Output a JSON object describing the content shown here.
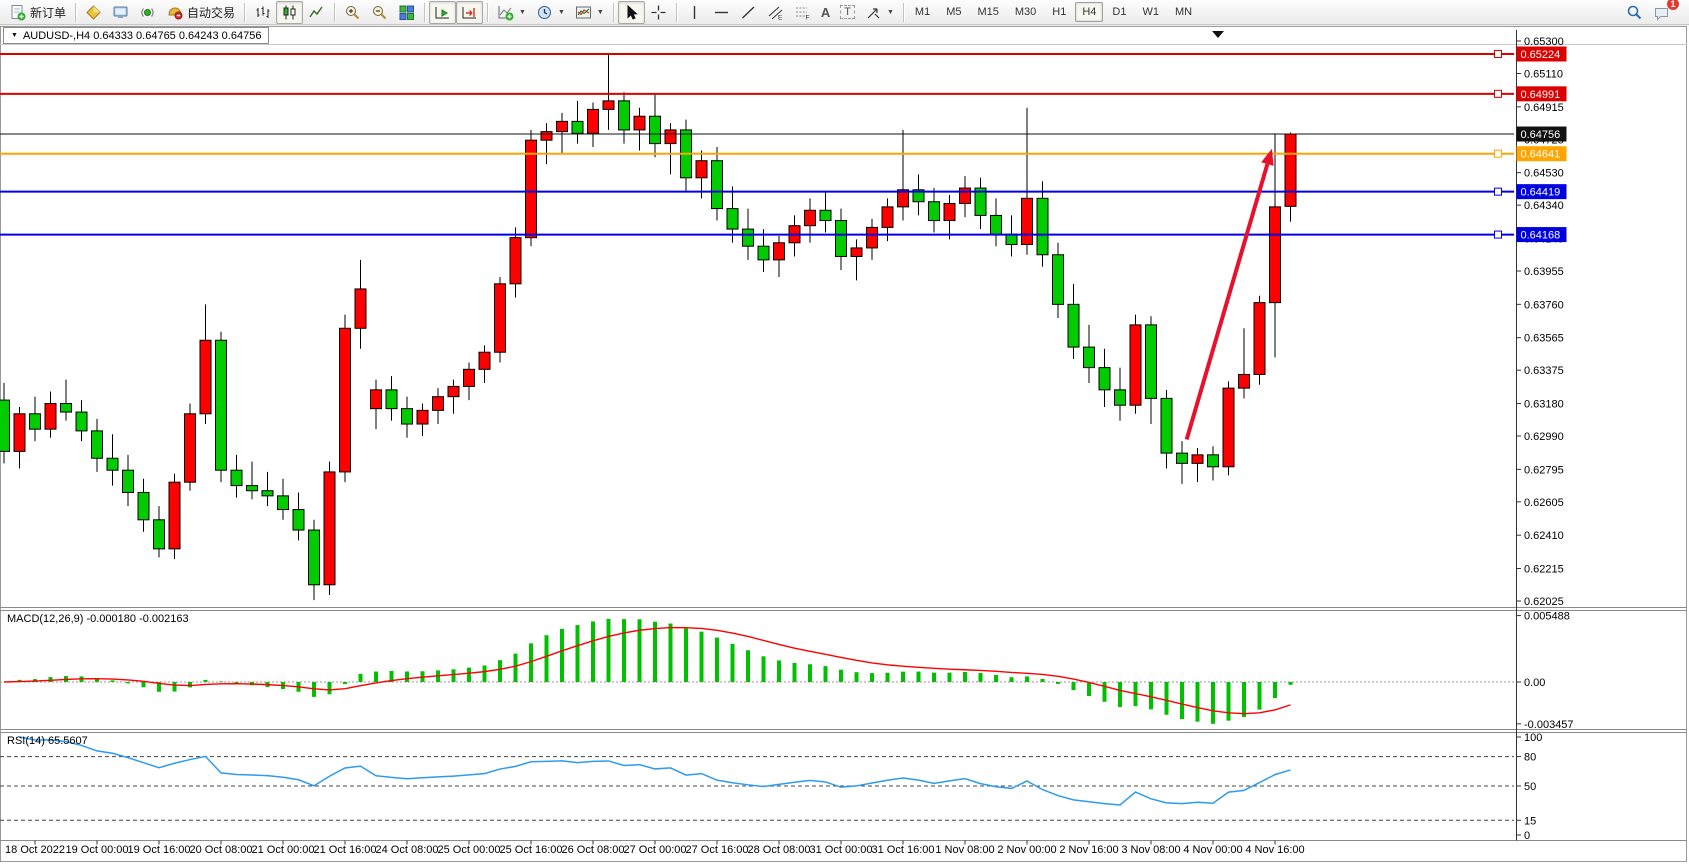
{
  "toolbar": {
    "new_order_label": "新订单",
    "autotrading_label": "自动交易",
    "text_tool_letter": "A",
    "label_tool_letter": "T",
    "timeframes": [
      "M1",
      "M5",
      "M15",
      "M30",
      "H1",
      "H4",
      "D1",
      "W1",
      "MN"
    ],
    "active_timeframe": "H4",
    "notification_badge": "1"
  },
  "chart": {
    "title": "AUDUSD-,H4  0.64333 0.64765 0.64243 0.64756",
    "macd_label": "MACD(12,26,9) -0.000180 -0.002163",
    "rsi_label": "RSI(14) 65.5607"
  },
  "chart_data": {
    "type": "candlestick",
    "symbol": "AUDUSD-",
    "timeframe": "H4",
    "current_ohlc": {
      "open": "0.64333",
      "high": "0.64765",
      "low": "0.64243",
      "close": "0.64756"
    },
    "ylim": [
      0.62025,
      0.653
    ],
    "price_ticks": [
      "0.65300",
      "0.65110",
      "0.64915",
      "0.64725",
      "0.64530",
      "0.64340",
      "0.64145",
      "0.63955",
      "0.63760",
      "0.63565",
      "0.63375",
      "0.63180",
      "0.62990",
      "0.62795",
      "0.62605",
      "0.62410",
      "0.62215",
      "0.62025"
    ],
    "x_labels": [
      "18 Oct 2022",
      "19 Oct 00:00",
      "19 Oct 16:00",
      "20 Oct 08:00",
      "21 Oct 00:00",
      "21 Oct 16:00",
      "24 Oct 08:00",
      "25 Oct 00:00",
      "25 Oct 16:00",
      "26 Oct 08:00",
      "27 Oct 00:00",
      "27 Oct 16:00",
      "28 Oct 08:00",
      "31 Oct 00:00",
      "31 Oct 16:00",
      "1 Nov 08:00",
      "2 Nov 00:00",
      "2 Nov 16:00",
      "3 Nov 08:00",
      "4 Nov 00:00",
      "4 Nov 16:00"
    ],
    "x_label_start_index": 2,
    "x_label_step": 4,
    "candles": [
      [
        0.632,
        0.633,
        0.6283,
        0.629
      ],
      [
        0.629,
        0.6316,
        0.628,
        0.6312
      ],
      [
        0.6312,
        0.6322,
        0.6296,
        0.6303
      ],
      [
        0.6303,
        0.6325,
        0.6298,
        0.6318
      ],
      [
        0.6318,
        0.6332,
        0.6308,
        0.6313
      ],
      [
        0.6313,
        0.632,
        0.6296,
        0.6302
      ],
      [
        0.6302,
        0.6309,
        0.6278,
        0.6286
      ],
      [
        0.6286,
        0.63,
        0.627,
        0.6279
      ],
      [
        0.6279,
        0.6288,
        0.6258,
        0.6266
      ],
      [
        0.6266,
        0.6274,
        0.6243,
        0.625
      ],
      [
        0.625,
        0.6258,
        0.6228,
        0.6233
      ],
      [
        0.6233,
        0.6277,
        0.6227,
        0.6272
      ],
      [
        0.6272,
        0.6318,
        0.6267,
        0.6312
      ],
      [
        0.6312,
        0.6376,
        0.6306,
        0.6355
      ],
      [
        0.6355,
        0.636,
        0.6272,
        0.6279
      ],
      [
        0.6279,
        0.6288,
        0.6263,
        0.627
      ],
      [
        0.627,
        0.6284,
        0.6262,
        0.6267
      ],
      [
        0.6267,
        0.6278,
        0.6258,
        0.6264
      ],
      [
        0.6264,
        0.6274,
        0.625,
        0.6256
      ],
      [
        0.6256,
        0.6266,
        0.6238,
        0.6244
      ],
      [
        0.6244,
        0.625,
        0.6203,
        0.6212
      ],
      [
        0.6212,
        0.6284,
        0.6206,
        0.6278
      ],
      [
        0.6278,
        0.637,
        0.6272,
        0.6362
      ],
      [
        0.6362,
        0.6402,
        0.635,
        0.6385
      ],
      [
        0.6315,
        0.6332,
        0.6303,
        0.6326
      ],
      [
        0.6326,
        0.6334,
        0.6308,
        0.6315
      ],
      [
        0.6315,
        0.6322,
        0.6298,
        0.6306
      ],
      [
        0.6306,
        0.6318,
        0.6299,
        0.6314
      ],
      [
        0.6314,
        0.6327,
        0.6306,
        0.6322
      ],
      [
        0.6322,
        0.6332,
        0.6312,
        0.6328
      ],
      [
        0.6328,
        0.6342,
        0.632,
        0.6338
      ],
      [
        0.6338,
        0.6352,
        0.633,
        0.6348
      ],
      [
        0.6348,
        0.6392,
        0.6342,
        0.6388
      ],
      [
        0.6388,
        0.6421,
        0.638,
        0.6415
      ],
      [
        0.6415,
        0.6478,
        0.641,
        0.6472
      ],
      [
        0.6472,
        0.6482,
        0.6458,
        0.6477
      ],
      [
        0.6477,
        0.6488,
        0.6464,
        0.6483
      ],
      [
        0.6483,
        0.6495,
        0.647,
        0.6476
      ],
      [
        0.6476,
        0.6494,
        0.6468,
        0.649
      ],
      [
        0.649,
        0.6522,
        0.6478,
        0.6495
      ],
      [
        0.6495,
        0.65,
        0.647,
        0.6478
      ],
      [
        0.6478,
        0.6491,
        0.6466,
        0.6486
      ],
      [
        0.6486,
        0.6499,
        0.6462,
        0.647
      ],
      [
        0.647,
        0.6482,
        0.6452,
        0.6478
      ],
      [
        0.6478,
        0.6484,
        0.6442,
        0.645
      ],
      [
        0.645,
        0.6466,
        0.6438,
        0.646
      ],
      [
        0.646,
        0.6468,
        0.6425,
        0.6432
      ],
      [
        0.6432,
        0.6445,
        0.6412,
        0.642
      ],
      [
        0.642,
        0.6432,
        0.6402,
        0.641
      ],
      [
        0.641,
        0.642,
        0.6395,
        0.6402
      ],
      [
        0.6402,
        0.6416,
        0.6392,
        0.6412
      ],
      [
        0.6412,
        0.6428,
        0.6404,
        0.6422
      ],
      [
        0.6422,
        0.6438,
        0.6412,
        0.6431
      ],
      [
        0.6431,
        0.6442,
        0.6418,
        0.6425
      ],
      [
        0.6425,
        0.6432,
        0.6396,
        0.6404
      ],
      [
        0.6404,
        0.6414,
        0.639,
        0.6409
      ],
      [
        0.6409,
        0.6426,
        0.6402,
        0.6421
      ],
      [
        0.6421,
        0.6438,
        0.6413,
        0.6433
      ],
      [
        0.6433,
        0.6478,
        0.6425,
        0.6443
      ],
      [
        0.6443,
        0.6452,
        0.6428,
        0.6436
      ],
      [
        0.6436,
        0.6444,
        0.6418,
        0.6425
      ],
      [
        0.6425,
        0.644,
        0.6414,
        0.6435
      ],
      [
        0.6435,
        0.6451,
        0.6427,
        0.6444
      ],
      [
        0.6444,
        0.645,
        0.642,
        0.6428
      ],
      [
        0.6428,
        0.6438,
        0.641,
        0.6417
      ],
      [
        0.6417,
        0.6428,
        0.6404,
        0.6411
      ],
      [
        0.6411,
        0.6491,
        0.6405,
        0.6438
      ],
      [
        0.6438,
        0.6448,
        0.6398,
        0.6405
      ],
      [
        0.6405,
        0.6412,
        0.6368,
        0.6376
      ],
      [
        0.6376,
        0.6388,
        0.6344,
        0.6351
      ],
      [
        0.6351,
        0.6364,
        0.633,
        0.6339
      ],
      [
        0.6339,
        0.635,
        0.6316,
        0.6326
      ],
      [
        0.6326,
        0.6339,
        0.6308,
        0.6317
      ],
      [
        0.6317,
        0.637,
        0.6312,
        0.6364
      ],
      [
        0.6364,
        0.6369,
        0.6306,
        0.6321
      ],
      [
        0.6321,
        0.6326,
        0.628,
        0.6289
      ],
      [
        0.6289,
        0.6296,
        0.6271,
        0.6283
      ],
      [
        0.6283,
        0.6292,
        0.6272,
        0.6288
      ],
      [
        0.6288,
        0.6293,
        0.6273,
        0.6281
      ],
      [
        0.6281,
        0.6331,
        0.6276,
        0.6327
      ],
      [
        0.6327,
        0.6362,
        0.6321,
        0.6335
      ],
      [
        0.6335,
        0.6381,
        0.6329,
        0.6377
      ],
      [
        0.6377,
        0.6476,
        0.6345,
        0.6433
      ],
      [
        0.64333,
        0.64765,
        0.64243,
        0.64756
      ]
    ],
    "hlines": [
      {
        "price": "0.65224",
        "value": 0.65224,
        "color": "#dd0000",
        "width": 2,
        "handle": true
      },
      {
        "price": "0.64991",
        "value": 0.64991,
        "color": "#dd0000",
        "width": 2,
        "handle": true
      },
      {
        "price": "0.64756",
        "value": 0.64756,
        "color": "#111111",
        "width": 1,
        "handle": false,
        "role": "current-price"
      },
      {
        "price": "0.64641",
        "value": 0.64641,
        "color": "#ffa500",
        "width": 2,
        "handle": true
      },
      {
        "price": "0.64419",
        "value": 0.64419,
        "color": "#0000e0",
        "width": 2,
        "handle": true
      },
      {
        "price": "0.64168",
        "value": 0.64168,
        "color": "#0000e0",
        "width": 2,
        "handle": true
      }
    ],
    "indicators": [
      {
        "name": "MACD",
        "params": "12,26,9",
        "main": "-0.000180",
        "signal": "-0.002163",
        "ticks": [
          "0.005488",
          "0.00",
          "-0.003457"
        ],
        "hist_color": "#00c000",
        "signal_color": "#ff0000"
      },
      {
        "name": "RSI",
        "params": "14",
        "value": "65.5607",
        "ticks": [
          "100",
          "80",
          "50",
          "15",
          "0"
        ],
        "levels": [
          80,
          50,
          15
        ],
        "color": "#2d9bf0"
      }
    ],
    "annotations": [
      {
        "type": "arrow",
        "color": "#e8112d",
        "width": 4,
        "from": {
          "bar": 76.3,
          "price": 0.6297
        },
        "to": {
          "bar": 81.8,
          "price": 0.6467
        }
      }
    ],
    "colors": {
      "up": "#ff0000",
      "down": "#00cc00",
      "wick": "#000000",
      "bg": "#ffffff"
    }
  }
}
